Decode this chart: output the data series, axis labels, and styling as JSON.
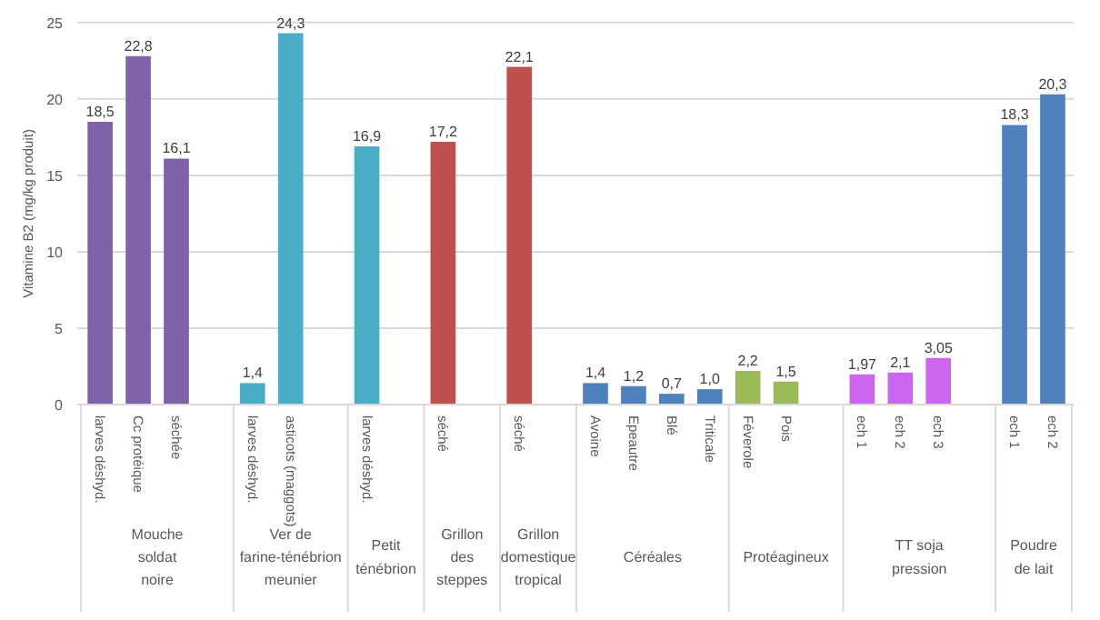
{
  "chart_data": {
    "type": "bar",
    "ylabel": "Vitamine B2 (mg/kg produit)",
    "categories": [
      "larves déshyd.",
      "Cc protéique",
      "séchée",
      null,
      "larves déshyd.",
      "asticots (maggots)",
      null,
      "larves déshyd.",
      null,
      "séché",
      null,
      "séché",
      null,
      "Avoine",
      "Epeautre",
      "Blé",
      "Triticale",
      "Féverole",
      "Pois",
      null,
      "ech 1",
      "ech 2",
      "ech 3",
      null,
      "ech 1",
      "ech 2"
    ],
    "series": [
      {
        "color": "#7f63a8",
        "values": [
          18.5,
          22.8,
          16.1,
          null,
          null,
          null,
          null,
          null,
          null,
          null,
          null,
          null,
          null,
          null,
          null,
          null,
          null,
          null,
          null,
          null,
          null,
          null,
          null,
          null,
          null,
          null
        ],
        "value_labels": [
          "18,5",
          "22,8",
          "16,1",
          null,
          null,
          null,
          null,
          null,
          null,
          null,
          null,
          null,
          null,
          null,
          null,
          null,
          null,
          null,
          null,
          null,
          null,
          null,
          null,
          null,
          null,
          null
        ]
      },
      {
        "color": "#4bacc6",
        "values": [
          null,
          null,
          null,
          null,
          1.4,
          24.3,
          null,
          null,
          null,
          null,
          null,
          null,
          null,
          null,
          null,
          null,
          null,
          null,
          null,
          null,
          null,
          null,
          null,
          null,
          null,
          null
        ],
        "value_labels": [
          null,
          null,
          null,
          null,
          "1,4",
          "24,3",
          null,
          null,
          null,
          null,
          null,
          null,
          null,
          null,
          null,
          null,
          null,
          null,
          null,
          null,
          null,
          null,
          null,
          null,
          null,
          null
        ]
      },
      {
        "color": "#4bacc6",
        "values": [
          null,
          null,
          null,
          null,
          null,
          null,
          null,
          16.9,
          null,
          null,
          null,
          null,
          null,
          null,
          null,
          null,
          null,
          null,
          null,
          null,
          null,
          null,
          null,
          null,
          null,
          null
        ],
        "value_labels": [
          null,
          null,
          null,
          null,
          null,
          null,
          null,
          "16,9",
          null,
          null,
          null,
          null,
          null,
          null,
          null,
          null,
          null,
          null,
          null,
          null,
          null,
          null,
          null,
          null,
          null,
          null
        ]
      },
      {
        "color": "#c0504d",
        "values": [
          null,
          null,
          null,
          null,
          null,
          null,
          null,
          null,
          null,
          17.2,
          null,
          null,
          null,
          null,
          null,
          null,
          null,
          null,
          null,
          null,
          null,
          null,
          null,
          null,
          null,
          null
        ],
        "value_labels": [
          null,
          null,
          null,
          null,
          null,
          null,
          null,
          null,
          null,
          "17,2",
          null,
          null,
          null,
          null,
          null,
          null,
          null,
          null,
          null,
          null,
          null,
          null,
          null,
          null,
          null,
          null
        ]
      },
      {
        "color": "#c0504d",
        "values": [
          null,
          null,
          null,
          null,
          null,
          null,
          null,
          null,
          null,
          null,
          null,
          22.1,
          null,
          null,
          null,
          null,
          null,
          null,
          null,
          null,
          null,
          null,
          null,
          null,
          null,
          null
        ],
        "value_labels": [
          null,
          null,
          null,
          null,
          null,
          null,
          null,
          null,
          null,
          null,
          null,
          "22,1",
          null,
          null,
          null,
          null,
          null,
          null,
          null,
          null,
          null,
          null,
          null,
          null,
          null,
          null
        ]
      },
      {
        "color": "#4f81bd",
        "values": [
          null,
          null,
          null,
          null,
          null,
          null,
          null,
          null,
          null,
          null,
          null,
          null,
          null,
          1.4,
          1.2,
          0.7,
          1.0,
          null,
          null,
          null,
          null,
          null,
          null,
          null,
          null,
          null
        ],
        "value_labels": [
          null,
          null,
          null,
          null,
          null,
          null,
          null,
          null,
          null,
          null,
          null,
          null,
          null,
          "1,4",
          "1,2",
          "0,7",
          "1,0",
          null,
          null,
          null,
          null,
          null,
          null,
          null,
          null,
          null
        ]
      },
      {
        "color": "#9bbb59",
        "values": [
          null,
          null,
          null,
          null,
          null,
          null,
          null,
          null,
          null,
          null,
          null,
          null,
          null,
          null,
          null,
          null,
          null,
          2.2,
          1.5,
          null,
          null,
          null,
          null,
          null,
          null,
          null
        ],
        "value_labels": [
          null,
          null,
          null,
          null,
          null,
          null,
          null,
          null,
          null,
          null,
          null,
          null,
          null,
          null,
          null,
          null,
          null,
          "2,2",
          "1,5",
          null,
          null,
          null,
          null,
          null,
          null,
          null
        ]
      },
      {
        "color": "#cc66ee",
        "values": [
          null,
          null,
          null,
          null,
          null,
          null,
          null,
          null,
          null,
          null,
          null,
          null,
          null,
          null,
          null,
          null,
          null,
          null,
          null,
          null,
          1.97,
          2.1,
          3.05,
          null,
          null,
          null
        ],
        "value_labels": [
          null,
          null,
          null,
          null,
          null,
          null,
          null,
          null,
          null,
          null,
          null,
          null,
          null,
          null,
          null,
          null,
          null,
          null,
          null,
          null,
          "1,97",
          "2,1",
          "3,05",
          null,
          null,
          null
        ]
      },
      {
        "color": "#4f81bd",
        "values": [
          null,
          null,
          null,
          null,
          null,
          null,
          null,
          null,
          null,
          null,
          null,
          null,
          null,
          null,
          null,
          null,
          null,
          null,
          null,
          null,
          null,
          null,
          null,
          null,
          18.3,
          20.3
        ],
        "value_labels": [
          null,
          null,
          null,
          null,
          null,
          null,
          null,
          null,
          null,
          null,
          null,
          null,
          null,
          null,
          null,
          null,
          null,
          null,
          null,
          null,
          null,
          null,
          null,
          null,
          "18,3",
          "20,3"
        ]
      }
    ],
    "annotations": [
      "Mouche\nsoldat\nnoire",
      "Ver de\nfarine-ténébrion\nmeunier",
      "Petit\nténébrion",
      "Grillon\ndes\nsteppes",
      "Grillon\ndomestique\ntropical",
      "Céréales",
      "Protéagineux",
      "TT soja\npression",
      "Poudre\nde lait"
    ],
    "ylim": [
      0,
      25
    ],
    "yticks": [
      0,
      5,
      10,
      15,
      20,
      25
    ],
    "grid": "y"
  }
}
